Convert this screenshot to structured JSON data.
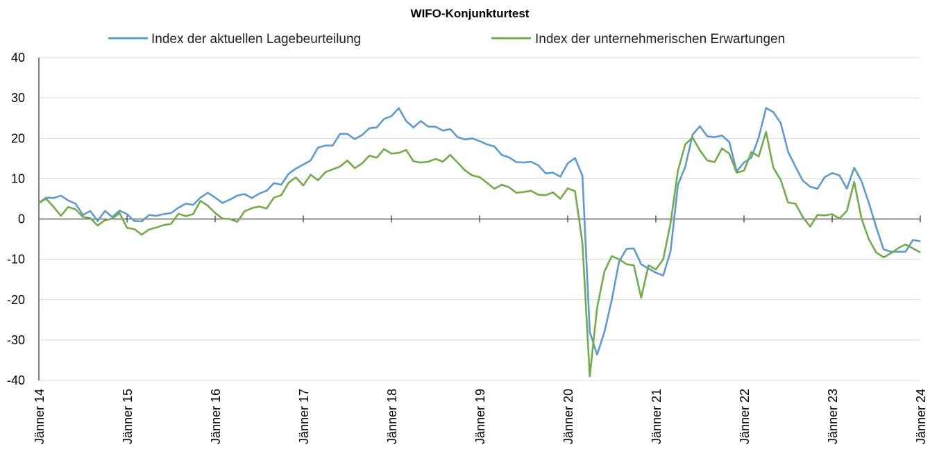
{
  "chart_data": {
    "type": "line",
    "title": "WIFO-Konjunkturtest",
    "xlabel": "",
    "ylabel": "",
    "ylim": [
      -40,
      40
    ],
    "yticks": [
      40,
      30,
      20,
      10,
      0,
      -10,
      -20,
      -30,
      -40
    ],
    "grid": true,
    "legend_position": "top",
    "x_start": "2014-01",
    "x_end": "2024-01",
    "x_tick_labels": [
      "Jänner 14",
      "Jänner 15",
      "Jänner 16",
      "Jänner 17",
      "Jänner 18",
      "Jänner 19",
      "Jänner 20",
      "Jänner 21",
      "Jänner 22",
      "Jänner 23",
      "Jänner 24"
    ],
    "series": [
      {
        "name": "Index der aktuellen Lagebeurteilung",
        "color": "#5b9bd5",
        "values": [
          4.0,
          5.3,
          5.2,
          5.8,
          4.6,
          3.8,
          1.0,
          2.0,
          -0.5,
          2.0,
          0.5,
          2.1,
          1.2,
          -0.5,
          -0.6,
          1.0,
          0.8,
          1.2,
          1.5,
          2.8,
          3.8,
          3.5,
          5.3,
          6.5,
          5.3,
          4.0,
          4.8,
          5.8,
          6.2,
          5.2,
          6.3,
          7.0,
          8.9,
          8.5,
          11.2,
          12.5,
          13.5,
          14.5,
          17.7,
          18.2,
          18.2,
          21.1,
          21.1,
          19.8,
          20.8,
          22.5,
          22.7,
          24.8,
          25.5,
          27.5,
          24.3,
          22.7,
          24.3,
          22.9,
          22.9,
          21.9,
          22.3,
          20.3,
          19.7,
          20.0,
          19.3,
          18.5,
          18.0,
          15.9,
          15.3,
          14.1,
          14.0,
          14.2,
          13.3,
          11.3,
          11.5,
          10.5,
          13.8,
          15.1,
          10.7,
          -28.0,
          -33.6,
          -28.0,
          -20.0,
          -10.5,
          -7.4,
          -7.3,
          -11.2,
          -12.3,
          -13.3,
          -14.0,
          -8.0,
          8.5,
          12.9,
          20.9,
          23.0,
          20.5,
          20.3,
          20.7,
          19.1,
          11.8,
          14.0,
          15.2,
          20.2,
          27.5,
          26.5,
          23.8,
          16.7,
          13.0,
          9.5,
          8.0,
          7.5,
          10.4,
          11.4,
          10.8,
          7.5,
          12.7,
          9.4,
          4.0,
          -2.0,
          -7.5,
          -8.1,
          -8.1,
          -8.1,
          -5.2,
          -5.5
        ]
      },
      {
        "name": "Index der unternehmerischen Erwartungen",
        "color": "#70ad47",
        "values": [
          4.0,
          5.0,
          3.0,
          0.8,
          3.0,
          2.4,
          0.5,
          0.2,
          -1.6,
          -0.3,
          0.1,
          1.5,
          -2.2,
          -2.5,
          -3.9,
          -2.6,
          -2.1,
          -1.5,
          -1.2,
          1.3,
          0.7,
          1.2,
          4.5,
          3.3,
          1.5,
          0.1,
          0.0,
          -0.7,
          1.9,
          2.7,
          3.1,
          2.6,
          5.3,
          5.9,
          9.0,
          10.3,
          8.3,
          11.0,
          9.6,
          11.6,
          12.3,
          13.0,
          14.5,
          12.6,
          13.8,
          15.7,
          15.2,
          17.3,
          16.2,
          16.4,
          17.1,
          14.3,
          14.0,
          14.2,
          14.9,
          14.2,
          15.9,
          14.0,
          12.1,
          10.8,
          10.4,
          9.0,
          7.5,
          8.5,
          7.9,
          6.5,
          6.7,
          7.0,
          6.0,
          5.9,
          6.6,
          5.0,
          7.6,
          6.9,
          -6.0,
          -39.0,
          -22.0,
          -13.0,
          -9.2,
          -10.0,
          -11.2,
          -11.5,
          -19.5,
          -11.5,
          -12.5,
          -10.0,
          -1.0,
          12.0,
          18.5,
          20.2,
          17.0,
          14.5,
          14.1,
          17.5,
          16.2,
          11.5,
          12.0,
          16.6,
          15.5,
          21.6,
          12.7,
          9.7,
          4.1,
          3.8,
          0.5,
          -1.9,
          1.0,
          0.9,
          1.2,
          0.1,
          2.0,
          9.2,
          0.1,
          -5.0,
          -8.3,
          -9.5,
          -8.5,
          -7.2,
          -6.3,
          -7.3,
          -8.3
        ]
      }
    ]
  }
}
